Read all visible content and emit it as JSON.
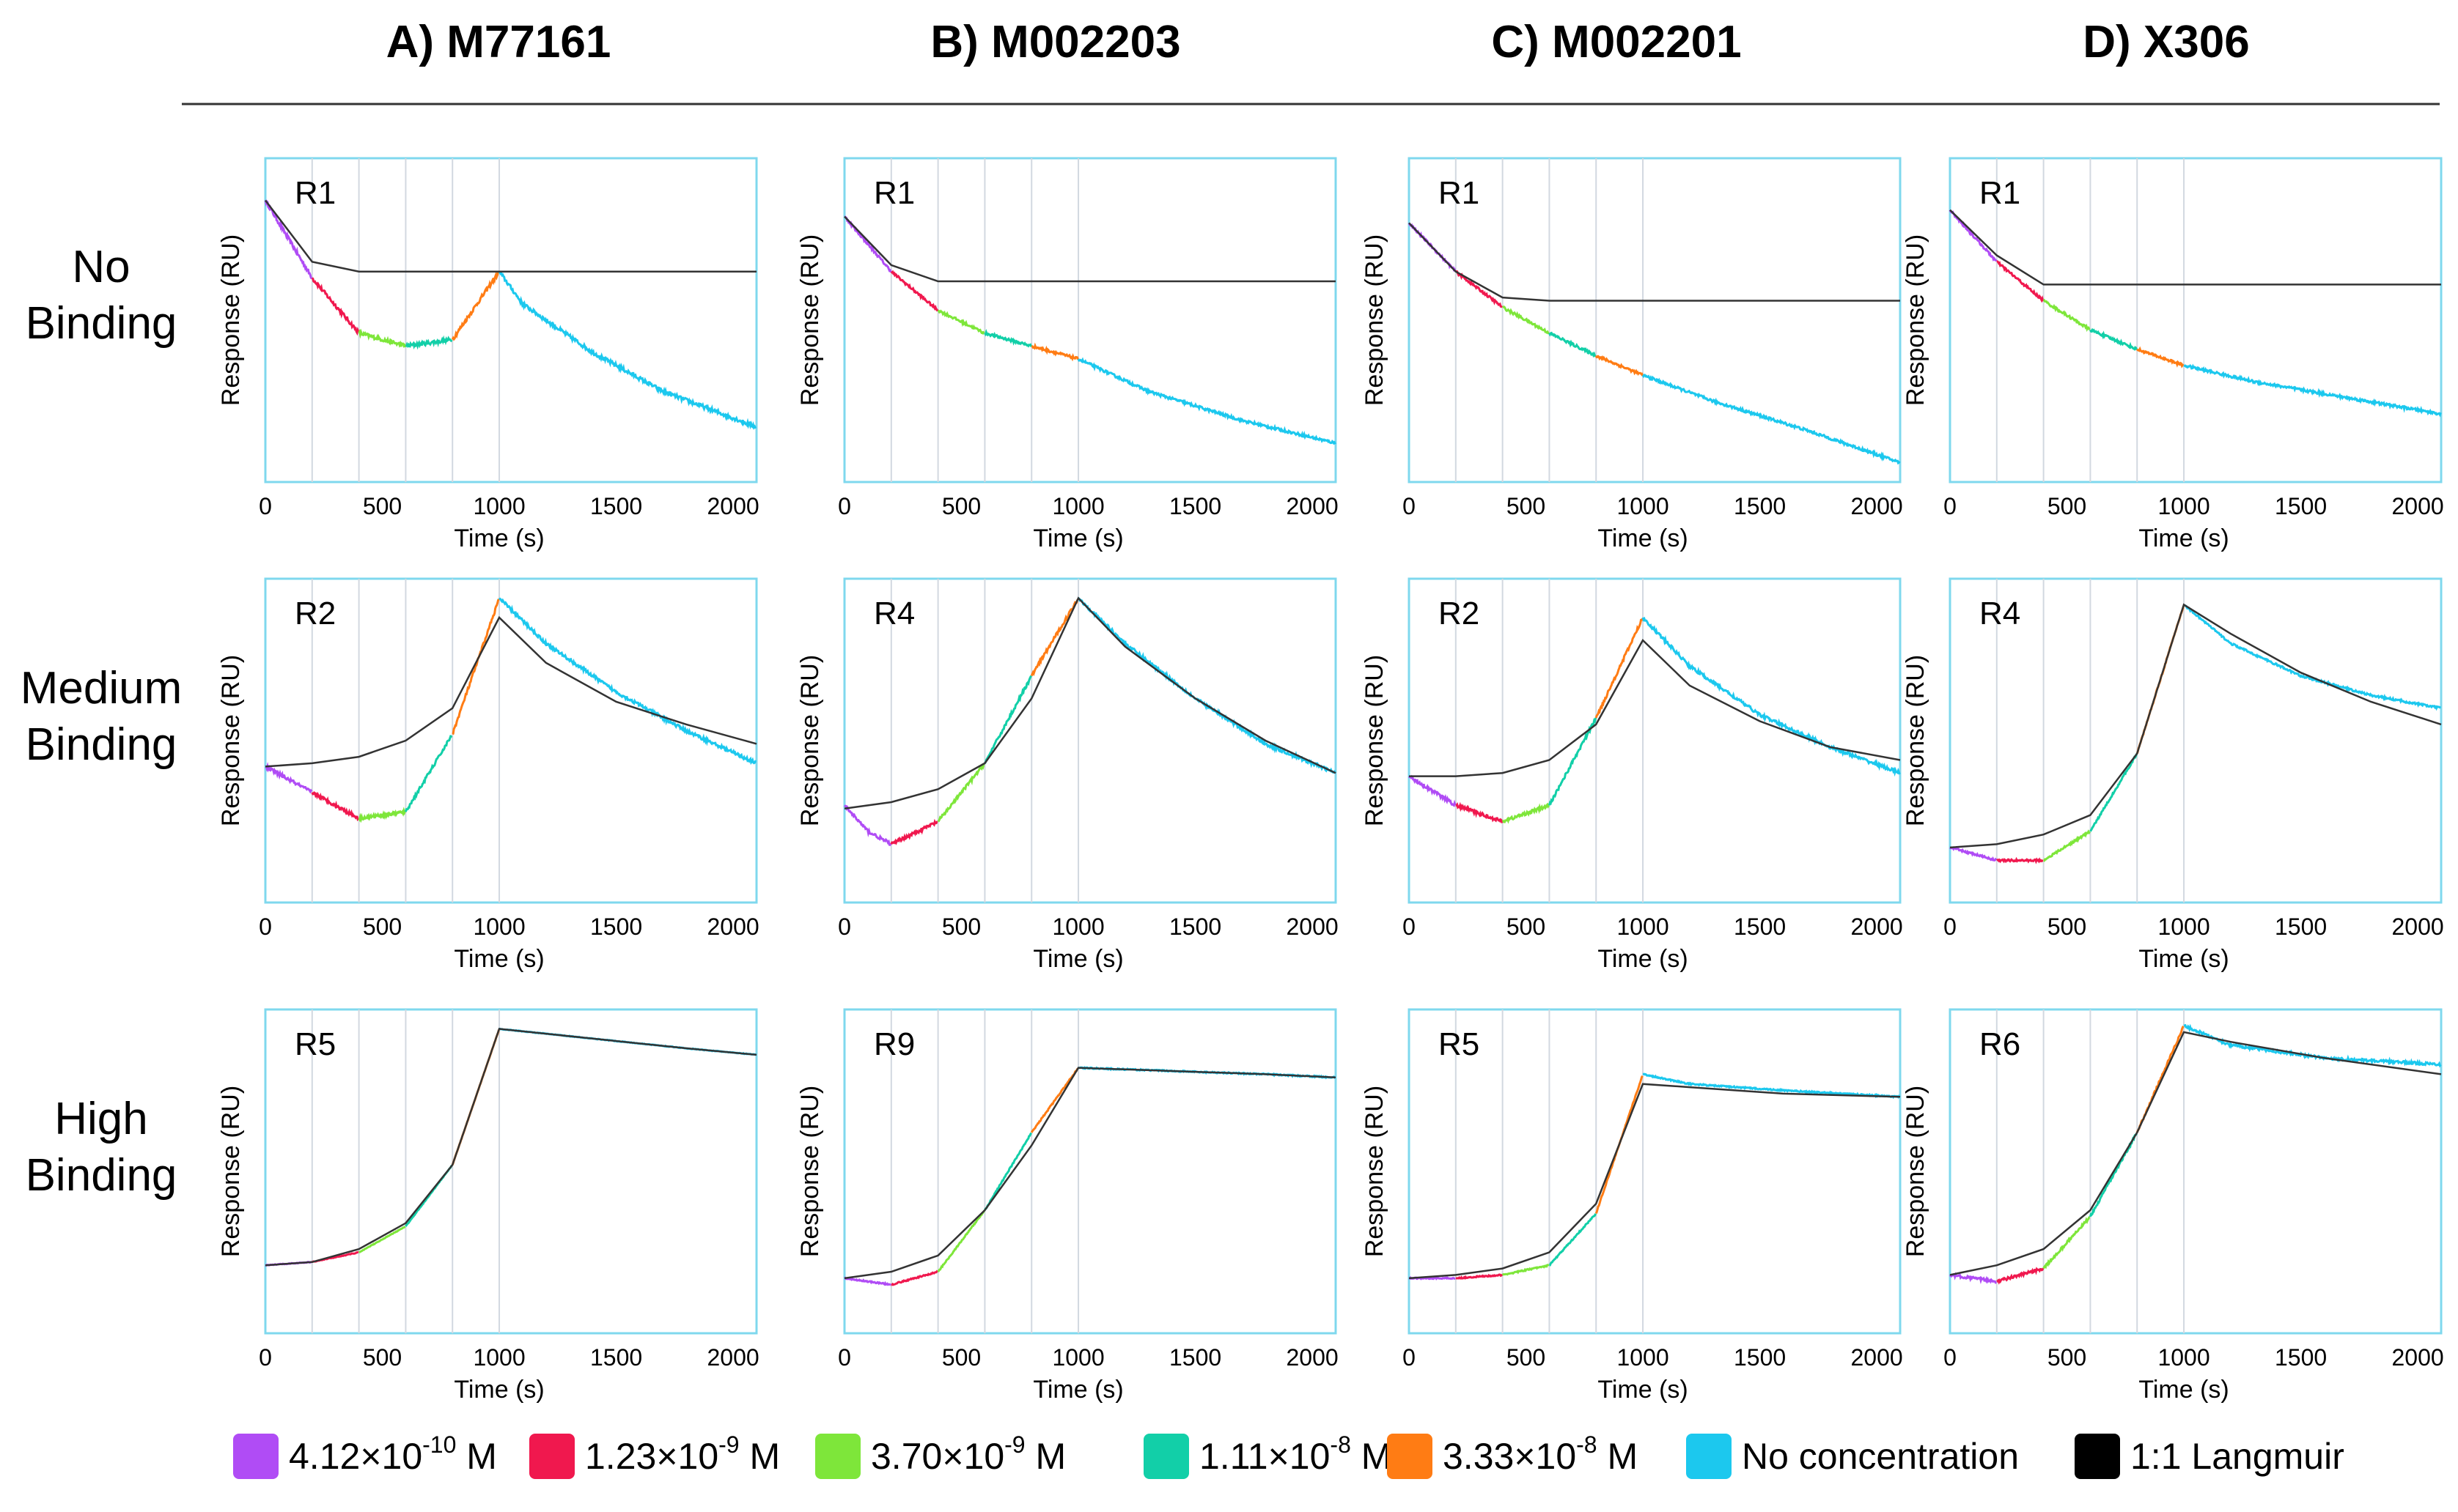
{
  "colors": {
    "c1": "#b04cf5",
    "c2": "#f0184e",
    "c3": "#7ee63a",
    "c4": "#12cfa8",
    "c5": "#ff7c14",
    "c6": "#1cc8ee",
    "fit": "#333333",
    "frame": "#7fd8ee",
    "divider": "#d2d8e0"
  },
  "columns": [
    {
      "title": "A) M77161"
    },
    {
      "title": "B) M002203"
    },
    {
      "title": "C) M002201"
    },
    {
      "title": "D) X306"
    }
  ],
  "rows": [
    {
      "label_line1": "No",
      "label_line2": "Binding"
    },
    {
      "label_line1": "Medium",
      "label_line2": "Binding"
    },
    {
      "label_line1": "High",
      "label_line2": "Binding"
    }
  ],
  "axis": {
    "xlabel": "Time (s)",
    "ylabel": "Response (RU)",
    "xticks": [
      0,
      500,
      1000,
      1500,
      2000
    ],
    "xlim": [
      0,
      2100
    ],
    "injection_boundaries": [
      200,
      400,
      600,
      800,
      1000
    ]
  },
  "legend": [
    {
      "base": "4.12×10",
      "exp": "-10",
      "unit": " M",
      "color": "#b04cf5"
    },
    {
      "base": "1.23×10",
      "exp": "-9",
      "unit": " M",
      "color": "#f0184e"
    },
    {
      "base": "3.70×10",
      "exp": "-9",
      "unit": " M",
      "color": "#7ee63a"
    },
    {
      "base": "1.11×10",
      "exp": "-8",
      "unit": " M",
      "color": "#12cfa8"
    },
    {
      "base": "3.33×10",
      "exp": "-8",
      "unit": " M",
      "color": "#ff7c14"
    },
    {
      "base": "No concentration",
      "exp": "",
      "unit": "",
      "color": "#1cc8ee"
    },
    {
      "base": "1:1 Langmuir",
      "exp": "",
      "unit": "",
      "color": "#000000"
    }
  ],
  "chart_data": [
    {
      "type": "line",
      "panel_label": "R1",
      "column": "A) M77161",
      "row": "No Binding",
      "xlabel": "Time (s)",
      "ylabel": "Response (RU)",
      "xlim": [
        0,
        2100
      ],
      "noise": 0.006,
      "observed": [
        [
          0,
          0.87
        ],
        [
          200,
          0.63
        ],
        [
          400,
          0.46
        ],
        [
          600,
          0.42
        ],
        [
          800,
          0.44
        ],
        [
          1000,
          0.65
        ],
        [
          1100,
          0.55
        ],
        [
          1400,
          0.4
        ],
        [
          1700,
          0.28
        ],
        [
          2100,
          0.17
        ]
      ],
      "fit": [
        [
          0,
          0.87
        ],
        [
          200,
          0.68
        ],
        [
          400,
          0.65
        ],
        [
          700,
          0.65
        ],
        [
          1000,
          0.65
        ],
        [
          2100,
          0.65
        ]
      ]
    },
    {
      "type": "line",
      "panel_label": "R1",
      "column": "B) M002203",
      "row": "No Binding",
      "xlabel": "Time (s)",
      "ylabel": "Response (RU)",
      "xlim": [
        0,
        2100
      ],
      "noise": 0.004,
      "observed": [
        [
          0,
          0.82
        ],
        [
          200,
          0.65
        ],
        [
          400,
          0.53
        ],
        [
          600,
          0.46
        ],
        [
          800,
          0.42
        ],
        [
          1000,
          0.38
        ],
        [
          1300,
          0.28
        ],
        [
          1700,
          0.19
        ],
        [
          2100,
          0.12
        ]
      ],
      "fit": [
        [
          0,
          0.82
        ],
        [
          200,
          0.67
        ],
        [
          400,
          0.62
        ],
        [
          700,
          0.62
        ],
        [
          2100,
          0.62
        ]
      ]
    },
    {
      "type": "line",
      "panel_label": "R1",
      "column": "C) M002201",
      "row": "No Binding",
      "xlabel": "Time (s)",
      "ylabel": "Response (RU)",
      "xlim": [
        0,
        2100
      ],
      "noise": 0.004,
      "observed": [
        [
          0,
          0.8
        ],
        [
          200,
          0.65
        ],
        [
          400,
          0.54
        ],
        [
          600,
          0.46
        ],
        [
          800,
          0.39
        ],
        [
          1000,
          0.33
        ],
        [
          1300,
          0.25
        ],
        [
          1700,
          0.16
        ],
        [
          2100,
          0.06
        ]
      ],
      "fit": [
        [
          0,
          0.8
        ],
        [
          200,
          0.65
        ],
        [
          400,
          0.57
        ],
        [
          600,
          0.56
        ],
        [
          2100,
          0.56
        ]
      ]
    },
    {
      "type": "line",
      "panel_label": "R1",
      "column": "D) X306",
      "row": "No Binding",
      "xlabel": "Time (s)",
      "ylabel": "Response (RU)",
      "xlim": [
        0,
        2100
      ],
      "noise": 0.004,
      "observed": [
        [
          0,
          0.84
        ],
        [
          200,
          0.68
        ],
        [
          400,
          0.56
        ],
        [
          600,
          0.47
        ],
        [
          800,
          0.41
        ],
        [
          1000,
          0.36
        ],
        [
          1300,
          0.31
        ],
        [
          1700,
          0.26
        ],
        [
          2100,
          0.21
        ]
      ],
      "fit": [
        [
          0,
          0.84
        ],
        [
          200,
          0.7
        ],
        [
          400,
          0.61
        ],
        [
          700,
          0.61
        ],
        [
          2100,
          0.61
        ]
      ]
    },
    {
      "type": "line",
      "panel_label": "R2",
      "column": "A) M77161",
      "row": "Medium Binding",
      "xlabel": "Time (s)",
      "ylabel": "Response (RU)",
      "xlim": [
        0,
        2100
      ],
      "noise": 0.005,
      "observed": [
        [
          0,
          0.42
        ],
        [
          200,
          0.34
        ],
        [
          400,
          0.26
        ],
        [
          600,
          0.28
        ],
        [
          800,
          0.52
        ],
        [
          1000,
          0.94
        ],
        [
          1200,
          0.8
        ],
        [
          1500,
          0.65
        ],
        [
          1800,
          0.53
        ],
        [
          2100,
          0.43
        ]
      ],
      "fit": [
        [
          0,
          0.42
        ],
        [
          200,
          0.43
        ],
        [
          400,
          0.45
        ],
        [
          600,
          0.5
        ],
        [
          800,
          0.6
        ],
        [
          1000,
          0.88
        ],
        [
          1200,
          0.74
        ],
        [
          1500,
          0.62
        ],
        [
          1800,
          0.55
        ],
        [
          2100,
          0.49
        ]
      ]
    },
    {
      "type": "line",
      "panel_label": "R4",
      "column": "B) M002203",
      "row": "Medium Binding",
      "xlabel": "Time (s)",
      "ylabel": "Response (RU)",
      "xlim": [
        0,
        2100
      ],
      "noise": 0.005,
      "observed": [
        [
          0,
          0.3
        ],
        [
          100,
          0.22
        ],
        [
          200,
          0.18
        ],
        [
          400,
          0.25
        ],
        [
          600,
          0.43
        ],
        [
          800,
          0.7
        ],
        [
          1000,
          0.94
        ],
        [
          1200,
          0.8
        ],
        [
          1500,
          0.63
        ],
        [
          1800,
          0.49
        ],
        [
          2100,
          0.4
        ]
      ],
      "fit": [
        [
          0,
          0.29
        ],
        [
          200,
          0.31
        ],
        [
          400,
          0.35
        ],
        [
          600,
          0.43
        ],
        [
          800,
          0.63
        ],
        [
          1000,
          0.94
        ],
        [
          1200,
          0.79
        ],
        [
          1500,
          0.63
        ],
        [
          1800,
          0.5
        ],
        [
          2100,
          0.4
        ]
      ]
    },
    {
      "type": "line",
      "panel_label": "R2",
      "column": "C) M002201",
      "row": "Medium Binding",
      "xlabel": "Time (s)",
      "ylabel": "Response (RU)",
      "xlim": [
        0,
        2100
      ],
      "noise": 0.005,
      "observed": [
        [
          0,
          0.39
        ],
        [
          200,
          0.3
        ],
        [
          400,
          0.25
        ],
        [
          600,
          0.3
        ],
        [
          800,
          0.57
        ],
        [
          1000,
          0.88
        ],
        [
          1200,
          0.73
        ],
        [
          1500,
          0.58
        ],
        [
          1800,
          0.48
        ],
        [
          2100,
          0.4
        ]
      ],
      "fit": [
        [
          0,
          0.39
        ],
        [
          200,
          0.39
        ],
        [
          400,
          0.4
        ],
        [
          600,
          0.44
        ],
        [
          800,
          0.55
        ],
        [
          1000,
          0.81
        ],
        [
          1200,
          0.67
        ],
        [
          1500,
          0.56
        ],
        [
          1800,
          0.48
        ],
        [
          2100,
          0.44
        ]
      ]
    },
    {
      "type": "line",
      "panel_label": "R4",
      "column": "D) X306",
      "row": "Medium Binding",
      "xlabel": "Time (s)",
      "ylabel": "Response (RU)",
      "xlim": [
        0,
        2100
      ],
      "noise": 0.003,
      "observed": [
        [
          0,
          0.17
        ],
        [
          200,
          0.13
        ],
        [
          400,
          0.13
        ],
        [
          600,
          0.22
        ],
        [
          800,
          0.46
        ],
        [
          1000,
          0.92
        ],
        [
          1200,
          0.8
        ],
        [
          1500,
          0.7
        ],
        [
          1800,
          0.64
        ],
        [
          2100,
          0.6
        ]
      ],
      "fit": [
        [
          0,
          0.17
        ],
        [
          200,
          0.18
        ],
        [
          400,
          0.21
        ],
        [
          600,
          0.27
        ],
        [
          800,
          0.46
        ],
        [
          1000,
          0.92
        ],
        [
          1200,
          0.83
        ],
        [
          1500,
          0.71
        ],
        [
          1800,
          0.62
        ],
        [
          2100,
          0.55
        ]
      ]
    },
    {
      "type": "line",
      "panel_label": "R5",
      "column": "A) M77161",
      "row": "High Binding",
      "xlabel": "Time (s)",
      "ylabel": "Response (RU)",
      "xlim": [
        0,
        2100
      ],
      "noise": 0.001,
      "observed": [
        [
          0,
          0.21
        ],
        [
          200,
          0.22
        ],
        [
          400,
          0.25
        ],
        [
          600,
          0.33
        ],
        [
          800,
          0.52
        ],
        [
          1000,
          0.94
        ],
        [
          1400,
          0.91
        ],
        [
          1800,
          0.88
        ],
        [
          2100,
          0.86
        ]
      ],
      "fit": [
        [
          0,
          0.21
        ],
        [
          200,
          0.22
        ],
        [
          400,
          0.26
        ],
        [
          600,
          0.34
        ],
        [
          800,
          0.52
        ],
        [
          1000,
          0.94
        ],
        [
          1400,
          0.91
        ],
        [
          1800,
          0.88
        ],
        [
          2100,
          0.86
        ]
      ]
    },
    {
      "type": "line",
      "panel_label": "R9",
      "column": "B) M002203",
      "row": "High Binding",
      "xlabel": "Time (s)",
      "ylabel": "Response (RU)",
      "xlim": [
        0,
        2100
      ],
      "noise": 0.002,
      "observed": [
        [
          0,
          0.17
        ],
        [
          200,
          0.15
        ],
        [
          400,
          0.19
        ],
        [
          600,
          0.38
        ],
        [
          800,
          0.62
        ],
        [
          1000,
          0.82
        ],
        [
          1400,
          0.81
        ],
        [
          1800,
          0.8
        ],
        [
          2100,
          0.79
        ]
      ],
      "fit": [
        [
          0,
          0.17
        ],
        [
          200,
          0.19
        ],
        [
          400,
          0.24
        ],
        [
          600,
          0.38
        ],
        [
          800,
          0.58
        ],
        [
          1000,
          0.82
        ],
        [
          1400,
          0.81
        ],
        [
          1800,
          0.8
        ],
        [
          2100,
          0.79
        ]
      ]
    },
    {
      "type": "line",
      "panel_label": "R5",
      "column": "C) M002201",
      "row": "High Binding",
      "xlabel": "Time (s)",
      "ylabel": "Response (RU)",
      "xlim": [
        0,
        2100
      ],
      "noise": 0.002,
      "observed": [
        [
          0,
          0.17
        ],
        [
          200,
          0.17
        ],
        [
          400,
          0.18
        ],
        [
          600,
          0.21
        ],
        [
          800,
          0.37
        ],
        [
          1000,
          0.8
        ],
        [
          1200,
          0.77
        ],
        [
          1600,
          0.75
        ],
        [
          2100,
          0.73
        ]
      ],
      "fit": [
        [
          0,
          0.17
        ],
        [
          200,
          0.18
        ],
        [
          400,
          0.2
        ],
        [
          600,
          0.25
        ],
        [
          800,
          0.4
        ],
        [
          1000,
          0.77
        ],
        [
          1200,
          0.76
        ],
        [
          1600,
          0.74
        ],
        [
          2100,
          0.73
        ]
      ]
    },
    {
      "type": "line",
      "panel_label": "R6",
      "column": "D) X306",
      "row": "High Binding",
      "xlabel": "Time (s)",
      "ylabel": "Response (RU)",
      "xlim": [
        0,
        2100
      ],
      "noise": 0.004,
      "observed": [
        [
          0,
          0.18
        ],
        [
          200,
          0.16
        ],
        [
          400,
          0.2
        ],
        [
          600,
          0.36
        ],
        [
          800,
          0.62
        ],
        [
          1000,
          0.95
        ],
        [
          1200,
          0.89
        ],
        [
          1600,
          0.85
        ],
        [
          2100,
          0.83
        ]
      ],
      "fit": [
        [
          0,
          0.18
        ],
        [
          200,
          0.21
        ],
        [
          400,
          0.26
        ],
        [
          600,
          0.38
        ],
        [
          800,
          0.62
        ],
        [
          1000,
          0.93
        ],
        [
          1200,
          0.9
        ],
        [
          1600,
          0.85
        ],
        [
          2100,
          0.8
        ]
      ]
    }
  ]
}
